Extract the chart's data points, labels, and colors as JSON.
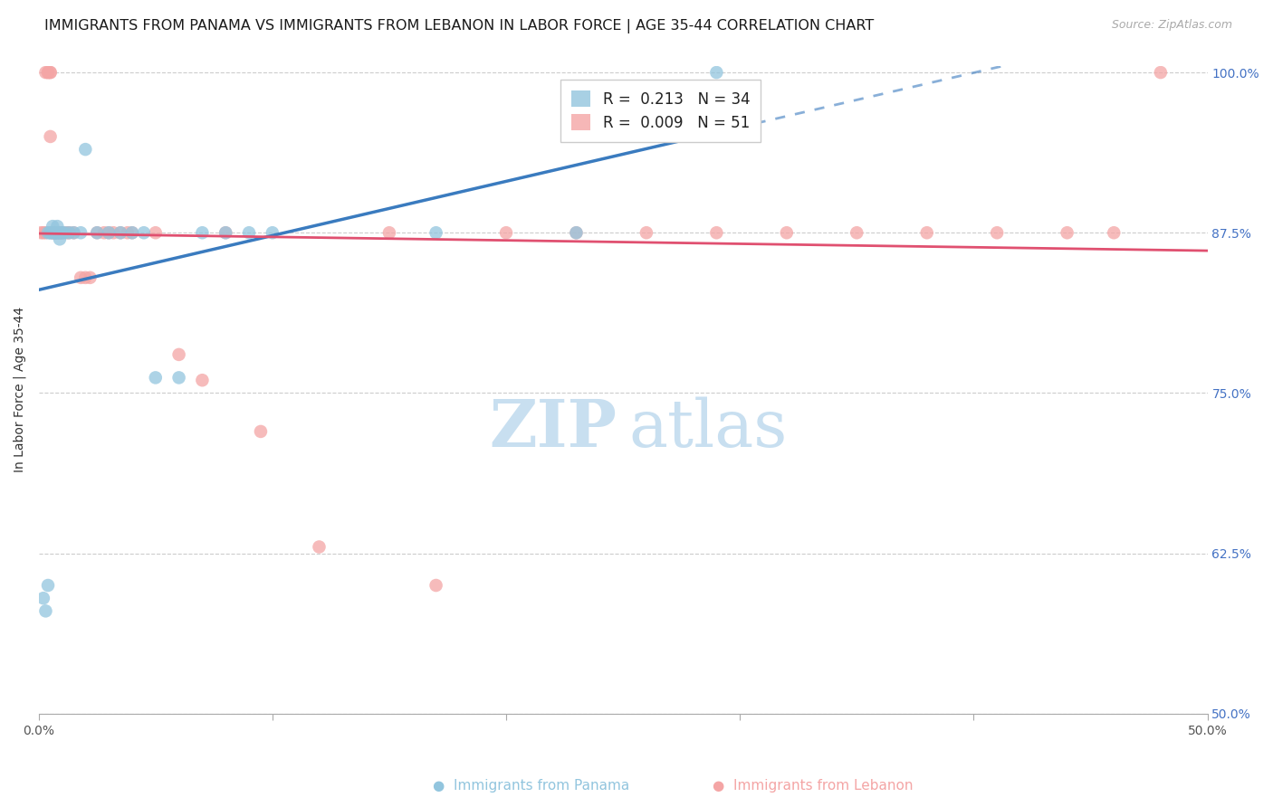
{
  "title": "IMMIGRANTS FROM PANAMA VS IMMIGRANTS FROM LEBANON IN LABOR FORCE | AGE 35-44 CORRELATION CHART",
  "source": "Source: ZipAtlas.com",
  "ylabel": "In Labor Force | Age 35-44",
  "xlim": [
    0.0,
    0.5
  ],
  "ylim": [
    0.5,
    1.005
  ],
  "ytick_positions": [
    0.5,
    0.625,
    0.75,
    0.875,
    1.0
  ],
  "yticklabels": [
    "50.0%",
    "62.5%",
    "75.0%",
    "87.5%",
    "100.0%"
  ],
  "xtick_positions": [
    0.0,
    0.1,
    0.2,
    0.3,
    0.4,
    0.5
  ],
  "xticklabels": [
    "0.0%",
    "",
    "",
    "",
    "",
    "50.0%"
  ],
  "panama_r": "0.213",
  "panama_n": "34",
  "lebanon_r": "0.009",
  "lebanon_n": "51",
  "panama_color": "#92c5de",
  "lebanon_color": "#f4a5a5",
  "panama_line_color": "#3a7bbf",
  "lebanon_line_color": "#e05070",
  "watermark_zip_color": "#c8dff0",
  "watermark_atlas_color": "#c8dff0",
  "panama_x": [
    0.002,
    0.003,
    0.004,
    0.004,
    0.005,
    0.005,
    0.006,
    0.006,
    0.007,
    0.007,
    0.008,
    0.008,
    0.009,
    0.009,
    0.01,
    0.011,
    0.013,
    0.015,
    0.018,
    0.02,
    0.025,
    0.03,
    0.035,
    0.04,
    0.045,
    0.05,
    0.06,
    0.07,
    0.08,
    0.09,
    0.1,
    0.17,
    0.23,
    0.29
  ],
  "panama_y": [
    0.59,
    0.58,
    0.6,
    0.875,
    0.875,
    0.875,
    0.875,
    0.88,
    0.875,
    0.875,
    0.875,
    0.88,
    0.875,
    0.87,
    0.875,
    0.875,
    0.875,
    0.875,
    0.875,
    0.94,
    0.875,
    0.875,
    0.875,
    0.875,
    0.875,
    0.762,
    0.762,
    0.875,
    0.875,
    0.875,
    0.875,
    0.875,
    0.875,
    1.0
  ],
  "lebanon_x": [
    0.001,
    0.002,
    0.003,
    0.003,
    0.004,
    0.004,
    0.005,
    0.005,
    0.005,
    0.006,
    0.006,
    0.007,
    0.007,
    0.008,
    0.008,
    0.009,
    0.009,
    0.01,
    0.01,
    0.012,
    0.013,
    0.015,
    0.018,
    0.02,
    0.022,
    0.025,
    0.028,
    0.03,
    0.032,
    0.035,
    0.038,
    0.04,
    0.05,
    0.06,
    0.07,
    0.08,
    0.095,
    0.12,
    0.15,
    0.17,
    0.2,
    0.23,
    0.26,
    0.29,
    0.32,
    0.35,
    0.38,
    0.41,
    0.44,
    0.46,
    0.48
  ],
  "lebanon_y": [
    0.875,
    0.875,
    0.875,
    1.0,
    1.0,
    1.0,
    1.0,
    1.0,
    0.95,
    0.875,
    0.875,
    0.875,
    0.875,
    0.875,
    0.875,
    0.875,
    0.875,
    0.875,
    0.875,
    0.875,
    0.875,
    0.875,
    0.84,
    0.84,
    0.84,
    0.875,
    0.875,
    0.875,
    0.875,
    0.875,
    0.875,
    0.875,
    0.875,
    0.78,
    0.76,
    0.875,
    0.72,
    0.63,
    0.875,
    0.6,
    0.875,
    0.875,
    0.875,
    0.875,
    0.875,
    0.875,
    0.875,
    0.875,
    0.875,
    0.875,
    1.0
  ],
  "title_fontsize": 11.5,
  "source_fontsize": 9,
  "axis_label_fontsize": 10,
  "tick_fontsize": 10,
  "legend_fontsize": 12,
  "ylabel_color": "#333333",
  "ytick_color": "#4472c4",
  "xtick_color": "#555555",
  "grid_color": "#cccccc",
  "spine_color": "#aaaaaa"
}
